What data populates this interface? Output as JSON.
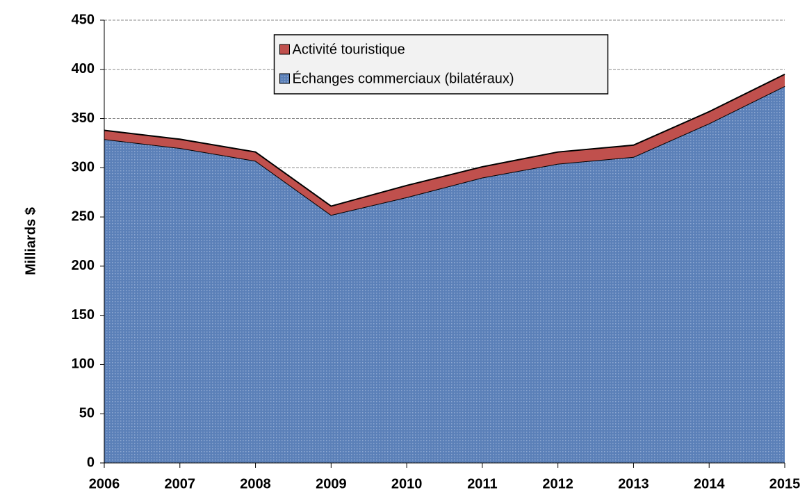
{
  "chart_data": {
    "type": "stacked_area",
    "y_label": "Milliards $",
    "categories": [
      "2006",
      "2007",
      "2008",
      "2009",
      "2010",
      "2011",
      "2012",
      "2013",
      "2014",
      "2015"
    ],
    "series": [
      {
        "name": "Échanges commerciaux (bilatéraux)",
        "color": "#5b80b8",
        "values": [
          329,
          320,
          307,
          252,
          270,
          290,
          304,
          311,
          345,
          383
        ]
      },
      {
        "name": "Activité touristique",
        "color": "#c0504d",
        "values": [
          9,
          9,
          9,
          9,
          12,
          11,
          12,
          12,
          12,
          12
        ]
      }
    ],
    "ylim": [
      0,
      450
    ],
    "yticks": [
      0,
      50,
      100,
      150,
      200,
      250,
      300,
      350,
      400,
      450
    ],
    "grid": true,
    "legend": "upper center"
  }
}
